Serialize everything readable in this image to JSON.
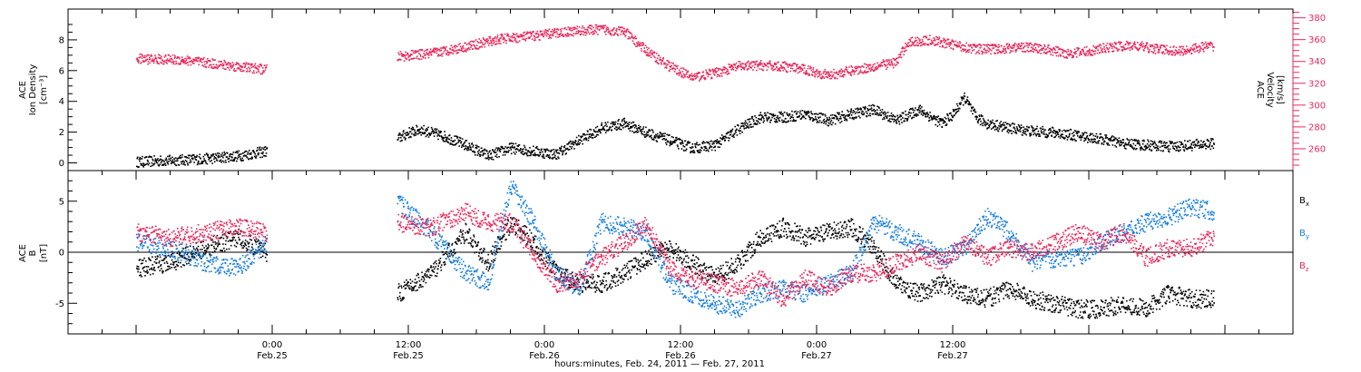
{
  "chart_data": [
    {
      "type": "scatter",
      "panel": "top",
      "ylabel_left": [
        "ACE",
        "Ion Density",
        "[cm⁻³]"
      ],
      "ylabel_right": [
        "ACE",
        "Velocity",
        "[km/s]"
      ],
      "ylim_left": [
        -0.5,
        10
      ],
      "yticks_left": [
        0,
        2,
        4,
        6,
        8
      ],
      "ylim_right": [
        240,
        388
      ],
      "yticks_right": [
        260,
        280,
        300,
        320,
        340,
        360,
        380
      ],
      "series": [
        {
          "role": "ion-density",
          "axis": "left",
          "color": "#000000",
          "points": [
            [
              0,
              0.1
            ],
            [
              3,
              0.2
            ],
            [
              6,
              0.3
            ],
            [
              9,
              0.5
            ],
            [
              11.5,
              0.8
            ],
            [
              23,
              1.6
            ],
            [
              24,
              2.0
            ],
            [
              25,
              2.2
            ],
            [
              27,
              1.8
            ],
            [
              29,
              1.2
            ],
            [
              31,
              0.5
            ],
            [
              33,
              1.0
            ],
            [
              35,
              0.8
            ],
            [
              37,
              0.6
            ],
            [
              39,
              1.5
            ],
            [
              41,
              2.3
            ],
            [
              43,
              2.6
            ],
            [
              45,
              2.0
            ],
            [
              47,
              1.5
            ],
            [
              49,
              1.0
            ],
            [
              51,
              1.2
            ],
            [
              53,
              2.2
            ],
            [
              55,
              3.0
            ],
            [
              57,
              3.0
            ],
            [
              59,
              3.2
            ],
            [
              61,
              2.8
            ],
            [
              63,
              3.2
            ],
            [
              65,
              3.5
            ],
            [
              67,
              2.8
            ],
            [
              69,
              3.5
            ],
            [
              71,
              2.6
            ],
            [
              72,
              3.2
            ],
            [
              73,
              4.3
            ],
            [
              74,
              3.0
            ],
            [
              75,
              2.6
            ],
            [
              77,
              2.3
            ],
            [
              79,
              2.1
            ],
            [
              81,
              2.0
            ],
            [
              83,
              1.8
            ],
            [
              85,
              1.6
            ],
            [
              87,
              1.3
            ],
            [
              89,
              1.2
            ],
            [
              91,
              1.1
            ],
            [
              93,
              1.2
            ],
            [
              95,
              1.3
            ]
          ]
        },
        {
          "role": "velocity",
          "axis": "right",
          "color": "#e8295b",
          "points": [
            [
              0,
              343
            ],
            [
              4,
              342
            ],
            [
              8,
              337
            ],
            [
              11.5,
              333
            ],
            [
              23,
              345
            ],
            [
              26,
              348
            ],
            [
              29,
              354
            ],
            [
              32,
              361
            ],
            [
              35,
              364
            ],
            [
              38,
              368
            ],
            [
              41,
              370
            ],
            [
              43,
              368
            ],
            [
              45,
              350
            ],
            [
              47,
              336
            ],
            [
              49,
              326
            ],
            [
              51,
              330
            ],
            [
              53,
              336
            ],
            [
              55,
              337
            ],
            [
              57,
              336
            ],
            [
              59,
              333
            ],
            [
              61,
              328
            ],
            [
              63,
              332
            ],
            [
              65,
              336
            ],
            [
              67,
              340
            ],
            [
              68,
              358
            ],
            [
              70,
              360
            ],
            [
              72,
              356
            ],
            [
              74,
              352
            ],
            [
              76,
              352
            ],
            [
              78,
              354
            ],
            [
              80,
              352
            ],
            [
              82,
              348
            ],
            [
              84,
              350
            ],
            [
              86,
              354
            ],
            [
              88,
              355
            ],
            [
              90,
              352
            ],
            [
              92,
              350
            ],
            [
              94,
              354
            ],
            [
              95,
              355
            ]
          ]
        }
      ]
    },
    {
      "type": "scatter",
      "panel": "bottom",
      "ylabel_left": [
        "ACE",
        "B",
        "[nT]"
      ],
      "ylim": [
        -8,
        8
      ],
      "yticks": [
        -5,
        0,
        5
      ],
      "zero_line": true,
      "legend_placement": "right",
      "series": [
        {
          "name": "B",
          "subscript": "x",
          "color": "#000000",
          "points": [
            [
              0,
              -1.5
            ],
            [
              3,
              -1.0
            ],
            [
              6,
              0.5
            ],
            [
              9,
              1.5
            ],
            [
              11.5,
              0
            ],
            [
              23,
              -4.0
            ],
            [
              26,
              -2.0
            ],
            [
              29,
              2.0
            ],
            [
              31,
              -1.0
            ],
            [
              33,
              3.0
            ],
            [
              35,
              1.0
            ],
            [
              37,
              -2.0
            ],
            [
              39,
              -3.0
            ],
            [
              41,
              -3.0
            ],
            [
              43,
              -2.0
            ],
            [
              45,
              -0.5
            ],
            [
              47,
              0.5
            ],
            [
              49,
              -1.0
            ],
            [
              51,
              -2.5
            ],
            [
              53,
              -1.0
            ],
            [
              55,
              1.5
            ],
            [
              57,
              2.5
            ],
            [
              59,
              1.5
            ],
            [
              61,
              2.0
            ],
            [
              63,
              2.5
            ],
            [
              65,
              0.5
            ],
            [
              67,
              -3.0
            ],
            [
              69,
              -4.0
            ],
            [
              71,
              -3.0
            ],
            [
              73,
              -4.0
            ],
            [
              75,
              -4.5
            ],
            [
              77,
              -3.5
            ],
            [
              79,
              -4.5
            ],
            [
              81,
              -5.0
            ],
            [
              83,
              -5.5
            ],
            [
              85,
              -5.5
            ],
            [
              87,
              -5.0
            ],
            [
              89,
              -5.5
            ],
            [
              91,
              -4.0
            ],
            [
              93,
              -4.5
            ],
            [
              95,
              -4.5
            ]
          ]
        },
        {
          "name": "B",
          "subscript": "y",
          "color": "#1a7fdd",
          "points": [
            [
              0,
              1.0
            ],
            [
              3,
              0.5
            ],
            [
              6,
              -1.0
            ],
            [
              9,
              -1.5
            ],
            [
              11.5,
              1.0
            ],
            [
              23,
              5.0
            ],
            [
              26,
              2.0
            ],
            [
              29,
              -2.0
            ],
            [
              31,
              -3.0
            ],
            [
              33,
              6.5
            ],
            [
              35,
              3.0
            ],
            [
              37,
              -2.0
            ],
            [
              39,
              -3.5
            ],
            [
              41,
              3.0
            ],
            [
              43,
              2.5
            ],
            [
              45,
              2.0
            ],
            [
              47,
              -3.0
            ],
            [
              49,
              -4.0
            ],
            [
              51,
              -5.0
            ],
            [
              53,
              -5.5
            ],
            [
              55,
              -4.0
            ],
            [
              57,
              -3.5
            ],
            [
              59,
              -4.0
            ],
            [
              61,
              -3.0
            ],
            [
              63,
              -2.0
            ],
            [
              65,
              3.0
            ],
            [
              67,
              2.0
            ],
            [
              69,
              1.0
            ],
            [
              71,
              -0.5
            ],
            [
              73,
              0.5
            ],
            [
              75,
              3.5
            ],
            [
              77,
              2.0
            ],
            [
              79,
              -1.0
            ],
            [
              81,
              -0.5
            ],
            [
              83,
              -0.5
            ],
            [
              85,
              1.0
            ],
            [
              87,
              2.0
            ],
            [
              89,
              3.0
            ],
            [
              91,
              3.5
            ],
            [
              93,
              4.5
            ],
            [
              95,
              4.0
            ]
          ]
        },
        {
          "name": "B",
          "subscript": "z",
          "color": "#e8295b",
          "points": [
            [
              0,
              2.0
            ],
            [
              3,
              1.5
            ],
            [
              6,
              2.0
            ],
            [
              9,
              2.5
            ],
            [
              11.5,
              2.0
            ],
            [
              23,
              3.0
            ],
            [
              26,
              2.5
            ],
            [
              29,
              4.0
            ],
            [
              31,
              3.0
            ],
            [
              33,
              3.0
            ],
            [
              35,
              0.0
            ],
            [
              37,
              -3.0
            ],
            [
              39,
              -2.5
            ],
            [
              41,
              -0.5
            ],
            [
              43,
              1.0
            ],
            [
              45,
              3.0
            ],
            [
              47,
              -1.5
            ],
            [
              49,
              -2.5
            ],
            [
              51,
              -3.0
            ],
            [
              53,
              -3.5
            ],
            [
              55,
              -2.5
            ],
            [
              57,
              -4.5
            ],
            [
              59,
              -2.5
            ],
            [
              61,
              -3.5
            ],
            [
              63,
              -2.0
            ],
            [
              65,
              -2.0
            ],
            [
              67,
              -1.0
            ],
            [
              69,
              0.0
            ],
            [
              71,
              -1.0
            ],
            [
              73,
              1.0
            ],
            [
              75,
              -0.5
            ],
            [
              77,
              0.5
            ],
            [
              79,
              0.0
            ],
            [
              81,
              1.0
            ],
            [
              83,
              2.0
            ],
            [
              85,
              1.0
            ],
            [
              87,
              2.0
            ],
            [
              89,
              -0.5
            ],
            [
              91,
              0.5
            ],
            [
              93,
              0.5
            ],
            [
              95,
              1.5
            ]
          ]
        }
      ]
    }
  ],
  "x_axis": {
    "label": "hours:minutes, Feb. 24, 2011 — Feb. 27, 2011",
    "range_hours": [
      -6,
      102
    ],
    "tick_hours": [
      12,
      24,
      36,
      48,
      60,
      72,
      84
    ],
    "ticks": [
      {
        "hour": 12,
        "time": "0:00",
        "date": "Feb.25"
      },
      {
        "hour": 24,
        "time": "12:00",
        "date": "Feb.25"
      },
      {
        "hour": 36,
        "time": "0:00",
        "date": "Feb.26"
      },
      {
        "hour": 48,
        "time": "12:00",
        "date": "Feb.26"
      },
      {
        "hour": 60,
        "time": "0:00",
        "date": "Feb.27"
      },
      {
        "hour": 72,
        "time": "12:00",
        "date": "Feb.27"
      }
    ]
  },
  "legend": [
    {
      "base": "B",
      "sub": "x",
      "color": "#000000"
    },
    {
      "base": "B",
      "sub": "y",
      "color": "#1a7fdd"
    },
    {
      "base": "B",
      "sub": "z",
      "color": "#e8295b"
    }
  ]
}
